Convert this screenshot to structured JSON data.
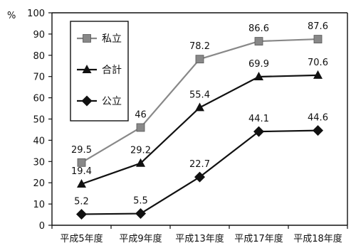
{
  "chart_data": {
    "type": "line",
    "categories": [
      "平成5年度",
      "平成9年度",
      "平成13年度",
      "平成17年度",
      "平成18年度"
    ],
    "ylabel": "%",
    "ylim": [
      0,
      100
    ],
    "yticks": [
      0,
      10,
      20,
      30,
      40,
      50,
      60,
      70,
      80,
      90,
      100
    ],
    "grid": false,
    "legend_position": "top-left",
    "series": [
      {
        "name": "私立",
        "marker": "square",
        "color": "#888888",
        "values": [
          29.5,
          46,
          78.2,
          86.6,
          87.6
        ],
        "labels": [
          "29.5",
          "46",
          "78.2",
          "86.6",
          "87.6"
        ]
      },
      {
        "name": "合計",
        "marker": "triangle",
        "color": "#111111",
        "values": [
          19.4,
          29.2,
          55.4,
          69.9,
          70.6
        ],
        "labels": [
          "19.4",
          "29.2",
          "55.4",
          "69.9",
          "70.6"
        ]
      },
      {
        "name": "公立",
        "marker": "diamond",
        "color": "#111111",
        "values": [
          5.2,
          5.5,
          22.7,
          44.1,
          44.6
        ],
        "labels": [
          "5.2",
          "5.5",
          "22.7",
          "44.1",
          "44.6"
        ]
      }
    ]
  }
}
